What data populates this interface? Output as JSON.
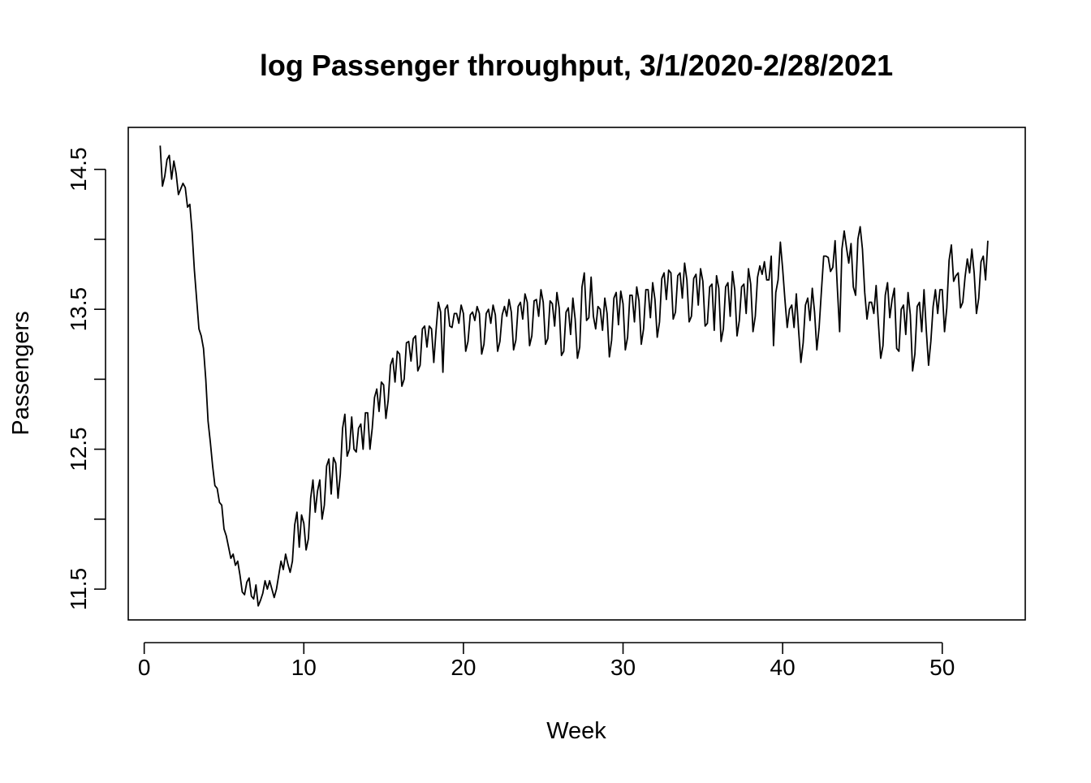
{
  "chart_data": {
    "type": "line",
    "title": "log Passenger throughput, 3/1/2020-2/28/2021",
    "xlabel": "Week",
    "ylabel": "Passengers",
    "xlim": [
      -1,
      55.2
    ],
    "ylim": [
      11.28,
      14.8
    ],
    "xticks": [
      0,
      10,
      20,
      30,
      40,
      50
    ],
    "xtick_labels": [
      "0",
      "10",
      "20",
      "30",
      "40",
      "50"
    ],
    "yticks": [
      11.5,
      12.0,
      12.5,
      13.0,
      13.5,
      14.0,
      14.5
    ],
    "ytick_labels": [
      "11.5",
      "",
      "12.5",
      "",
      "13.5",
      "",
      "14.5"
    ],
    "grid": false,
    "line_color": "#000000",
    "series": [
      {
        "x_start": 1,
        "x_step": 0.142857,
        "values": [
          14.67,
          14.38,
          14.45,
          14.57,
          14.6,
          14.43,
          14.56,
          14.47,
          14.32,
          14.36,
          14.4,
          14.37,
          14.23,
          14.25,
          14.05,
          13.78,
          13.57,
          13.36,
          13.31,
          13.22,
          13.0,
          12.7,
          12.55,
          12.38,
          12.24,
          12.22,
          12.12,
          12.1,
          11.93,
          11.88,
          11.8,
          11.72,
          11.75,
          11.67,
          11.7,
          11.6,
          11.48,
          11.46,
          11.55,
          11.58,
          11.45,
          11.43,
          11.53,
          11.38,
          11.42,
          11.47,
          11.56,
          11.5,
          11.56,
          11.5,
          11.44,
          11.5,
          11.6,
          11.7,
          11.64,
          11.75,
          11.68,
          11.62,
          11.7,
          11.96,
          12.05,
          11.8,
          12.03,
          11.97,
          11.78,
          11.86,
          12.15,
          12.28,
          12.05,
          12.2,
          12.28,
          12.0,
          12.1,
          12.38,
          12.43,
          12.18,
          12.44,
          12.4,
          12.15,
          12.32,
          12.65,
          12.75,
          12.45,
          12.5,
          12.73,
          12.5,
          12.48,
          12.65,
          12.68,
          12.5,
          12.76,
          12.76,
          12.5,
          12.65,
          12.87,
          12.93,
          12.77,
          12.98,
          12.96,
          12.72,
          12.85,
          13.1,
          13.15,
          12.98,
          13.2,
          13.18,
          12.95,
          13.0,
          13.26,
          13.27,
          13.13,
          13.29,
          13.31,
          13.06,
          13.1,
          13.36,
          13.38,
          13.23,
          13.38,
          13.36,
          13.12,
          13.35,
          13.55,
          13.48,
          13.05,
          13.5,
          13.53,
          13.38,
          13.37,
          13.47,
          13.47,
          13.4,
          13.53,
          13.47,
          13.2,
          13.27,
          13.46,
          13.48,
          13.42,
          13.52,
          13.47,
          13.18,
          13.25,
          13.47,
          13.5,
          13.4,
          13.53,
          13.46,
          13.2,
          13.27,
          13.46,
          13.52,
          13.45,
          13.57,
          13.48,
          13.21,
          13.28,
          13.52,
          13.55,
          13.43,
          13.61,
          13.55,
          13.24,
          13.31,
          13.56,
          13.57,
          13.45,
          13.64,
          13.55,
          13.25,
          13.29,
          13.56,
          13.54,
          13.38,
          13.62,
          13.51,
          13.17,
          13.2,
          13.48,
          13.51,
          13.32,
          13.58,
          13.43,
          13.15,
          13.23,
          13.66,
          13.76,
          13.42,
          13.44,
          13.73,
          13.45,
          13.36,
          13.52,
          13.5,
          13.35,
          13.58,
          13.47,
          13.16,
          13.28,
          13.58,
          13.62,
          13.39,
          13.63,
          13.54,
          13.21,
          13.3,
          13.6,
          13.6,
          13.41,
          13.66,
          13.56,
          13.25,
          13.36,
          13.64,
          13.64,
          13.44,
          13.69,
          13.57,
          13.3,
          13.41,
          13.72,
          13.76,
          13.57,
          13.78,
          13.76,
          13.43,
          13.48,
          13.74,
          13.76,
          13.58,
          13.83,
          13.71,
          13.41,
          13.45,
          13.72,
          13.75,
          13.53,
          13.79,
          13.7,
          13.38,
          13.4,
          13.66,
          13.68,
          13.35,
          13.74,
          13.65,
          13.27,
          13.36,
          13.66,
          13.69,
          13.45,
          13.77,
          13.64,
          13.31,
          13.42,
          13.66,
          13.68,
          13.47,
          13.79,
          13.68,
          13.34,
          13.45,
          13.73,
          13.81,
          13.75,
          13.84,
          13.71,
          13.71,
          13.88,
          13.24,
          13.62,
          13.71,
          13.98,
          13.79,
          13.57,
          13.37,
          13.5,
          13.53,
          13.37,
          13.61,
          13.35,
          13.12,
          13.26,
          13.53,
          13.58,
          13.42,
          13.65,
          13.48,
          13.21,
          13.37,
          13.63,
          13.88,
          13.88,
          13.87,
          13.77,
          13.8,
          13.99,
          13.65,
          13.34,
          13.93,
          14.06,
          13.94,
          13.83,
          13.97,
          13.66,
          13.6,
          14.0,
          14.09,
          13.93,
          13.62,
          13.43,
          13.55,
          13.55,
          13.47,
          13.67,
          13.4,
          13.15,
          13.24,
          13.6,
          13.69,
          13.44,
          13.57,
          13.65,
          13.22,
          13.2,
          13.5,
          13.53,
          13.32,
          13.62,
          13.46,
          13.06,
          13.18,
          13.52,
          13.55,
          13.34,
          13.64,
          13.35,
          13.1,
          13.27,
          13.52,
          13.64,
          13.47,
          13.64,
          13.64,
          13.34,
          13.51,
          13.85,
          13.96,
          13.7,
          13.74,
          13.76,
          13.51,
          13.55,
          13.73,
          13.86,
          13.76,
          13.93,
          13.76,
          13.47,
          13.58,
          13.84,
          13.88,
          13.71,
          13.99
        ]
      }
    ]
  }
}
